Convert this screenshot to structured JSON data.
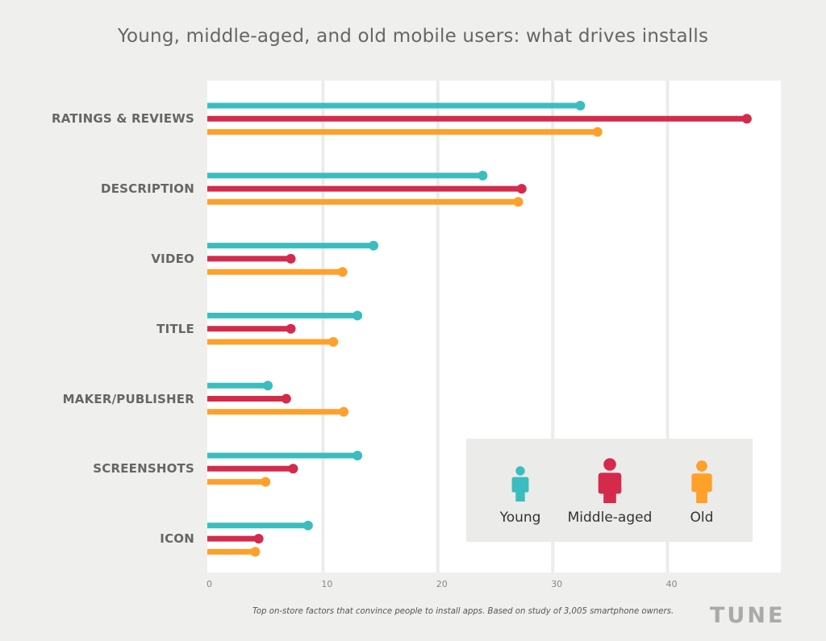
{
  "chart_data": {
    "type": "bar",
    "orientation": "horizontal",
    "style": "lollipop",
    "title": "Young, middle-aged, and old mobile users: what drives installs",
    "categories": [
      "RATINGS & REVIEWS",
      "DESCRIPTION",
      "VIDEO",
      "TITLE",
      "MAKER/PUBLISHER",
      "SCREENSHOTS",
      "ICON"
    ],
    "series": [
      {
        "name": "Young",
        "color": "#3bbdbf",
        "values": [
          32.4,
          23.9,
          14.4,
          13.0,
          5.2,
          13.0,
          8.7
        ]
      },
      {
        "name": "Middle-aged",
        "color": "#d42b4d",
        "values": [
          46.9,
          27.3,
          7.2,
          7.2,
          6.8,
          7.4,
          4.4
        ]
      },
      {
        "name": "Old",
        "color": "#ffa02a",
        "values": [
          33.9,
          27.0,
          11.7,
          10.9,
          11.8,
          5.0,
          4.1
        ]
      }
    ],
    "xlabel": "",
    "ylabel": "",
    "xlim": [
      0,
      50
    ],
    "xticks": [
      "0",
      "10",
      "20",
      "30",
      "40"
    ],
    "grid": true,
    "legend_placement": "bottom-right"
  },
  "caption": "Top on-store factors that convince people to install apps. Based on study of 3,005 smartphone owners.",
  "logo": "TUNE",
  "legend": {
    "items": [
      {
        "label": "Young",
        "icon": "person-icon-small",
        "color": "#3bbdbf"
      },
      {
        "label": "Middle-aged",
        "icon": "person-icon-large",
        "color": "#d42b4d"
      },
      {
        "label": "Old",
        "icon": "person-icon-medium",
        "color": "#ffa02a"
      }
    ]
  }
}
